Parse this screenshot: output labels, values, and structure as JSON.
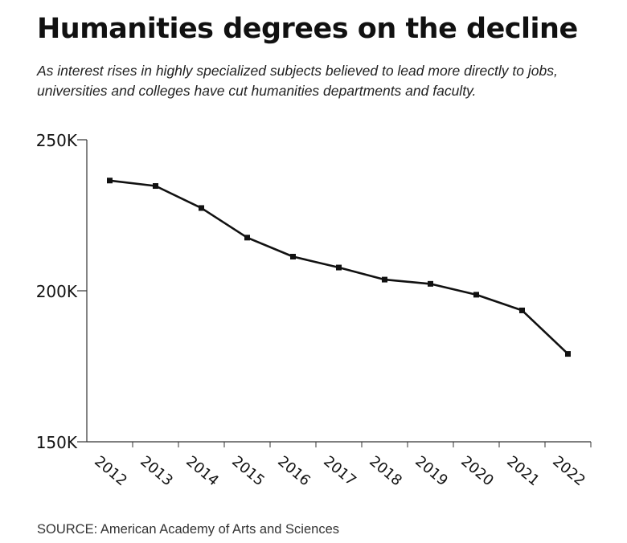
{
  "chart_data": {
    "type": "line",
    "title": "Humanities degrees on the decline",
    "subtitle": "As interest rises in highly specialized subjects believed to lead more directly to jobs, universities and colleges have cut humanities departments and faculty.",
    "source": "SOURCE: American Academy of Arts and Sciences",
    "x": [
      "2012",
      "2013",
      "2014",
      "2015",
      "2016",
      "2017",
      "2018",
      "2019",
      "2020",
      "2021",
      "2022"
    ],
    "y": [
      236500,
      234700,
      227400,
      217600,
      211300,
      207700,
      203700,
      202300,
      198700,
      193500,
      179100
    ],
    "ylim": [
      150000,
      250000
    ],
    "yticks": [
      {
        "value": 150000,
        "label": "150K"
      },
      {
        "value": 200000,
        "label": "200K"
      },
      {
        "value": 250000,
        "label": "250K"
      }
    ],
    "grid": false,
    "line_color": "#111111",
    "marker": "square"
  }
}
